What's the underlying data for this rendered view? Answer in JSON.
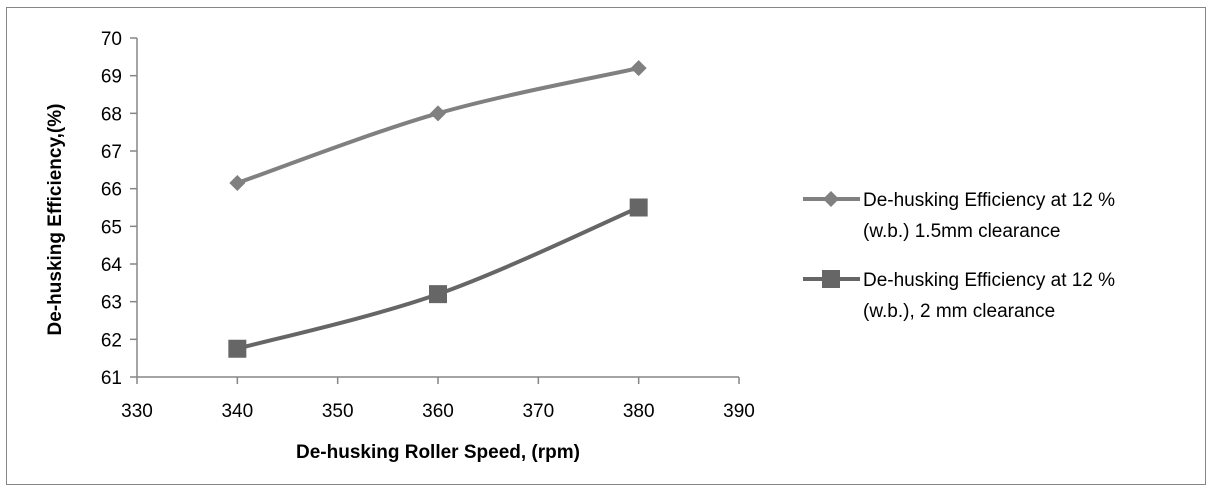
{
  "chart_data": {
    "type": "line",
    "title": "",
    "xlabel": "De-husking Roller Speed, (rpm)",
    "ylabel": "De-husking Efficiency,(%)",
    "xlim": [
      330,
      390
    ],
    "ylim": [
      61,
      70
    ],
    "xticks": [
      330,
      340,
      350,
      360,
      370,
      380,
      390
    ],
    "yticks": [
      61,
      62,
      63,
      64,
      65,
      66,
      67,
      68,
      69,
      70
    ],
    "grid": false,
    "legend_position": "right",
    "series": [
      {
        "name_lines": [
          "De-husking Efficiency at 12 %",
          "(w.b.) 1.5mm clearance"
        ],
        "marker": "diamond",
        "color": "#808080",
        "x": [
          340,
          360,
          380
        ],
        "y": [
          66.15,
          68.0,
          69.2
        ]
      },
      {
        "name_lines": [
          "De-husking Efficiency at 12 %",
          "(w.b.), 2 mm clearance"
        ],
        "marker": "square",
        "color": "#666666",
        "x": [
          340,
          360,
          380
        ],
        "y": [
          61.75,
          63.2,
          65.5
        ]
      }
    ]
  }
}
